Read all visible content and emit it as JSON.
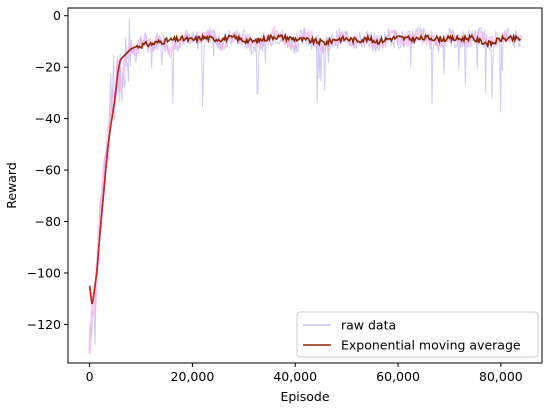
{
  "chart_data": {
    "type": "line",
    "title": "",
    "xlabel": "Episode",
    "ylabel": "Reward",
    "xlim": [
      -4200,
      88000
    ],
    "ylim": [
      -135,
      3
    ],
    "x_ticks": [
      0,
      20000,
      40000,
      60000,
      80000
    ],
    "x_tick_labels": [
      "0",
      "20,000",
      "40,000",
      "60,000",
      "80,000"
    ],
    "y_ticks": [
      0,
      -20,
      -40,
      -60,
      -80,
      -100,
      -120
    ],
    "y_tick_labels": [
      "0",
      "−20",
      "−40",
      "−60",
      "−80",
      "−100",
      "−120"
    ],
    "grid": false,
    "legend_position": "lower-right",
    "series": [
      {
        "name": "raw data",
        "color": "#c9c6f5",
        "style": "noisy",
        "x": [
          0,
          500,
          1000,
          1500,
          2000,
          2500,
          3000,
          3500,
          4000,
          4500,
          5000,
          5500,
          6000,
          7000,
          8000,
          9000,
          10000,
          12000,
          14000,
          16000,
          18000,
          20000,
          22000,
          24000,
          26000,
          28000,
          30000,
          32000,
          34000,
          36000,
          38000,
          40000,
          42000,
          44000,
          46000,
          48000,
          50000,
          52000,
          54000,
          56000,
          58000,
          60000,
          62000,
          64000,
          66000,
          68000,
          70000,
          72000,
          74000,
          76000,
          78000,
          80000,
          82000,
          84000
        ],
        "values": [
          -130,
          -108,
          -120,
          -95,
          -80,
          -66,
          -57,
          -48,
          -40,
          -25,
          -34,
          -18,
          -30,
          -16,
          -12,
          -15,
          -10,
          -11,
          -9,
          -13,
          -8,
          -10,
          -9,
          -7,
          -11,
          -8,
          -9,
          -12,
          -10,
          -7,
          -9,
          -11,
          -8,
          -10,
          -12,
          -9,
          -8,
          -10,
          -9,
          -11,
          -8,
          -9,
          -10,
          -7,
          -9,
          -11,
          -8,
          -10,
          -9,
          -8,
          -10,
          -9,
          -8,
          -9
        ]
      },
      {
        "name": "Exponential moving average",
        "color": "#8b2500",
        "x": [
          0,
          500,
          1000,
          1500,
          2000,
          2500,
          3000,
          3500,
          4000,
          4500,
          5000,
          5500,
          6000,
          7000,
          8000,
          9000,
          10000,
          12000,
          14000,
          16000,
          18000,
          20000,
          22000,
          24000,
          26000,
          28000,
          30000,
          32000,
          34000,
          36000,
          38000,
          40000,
          42000,
          44000,
          46000,
          48000,
          50000,
          52000,
          54000,
          56000,
          58000,
          60000,
          62000,
          64000,
          66000,
          68000,
          70000,
          72000,
          74000,
          76000,
          78000,
          80000,
          82000,
          84000
        ],
        "values": [
          -105,
          -113,
          -106,
          -98,
          -85,
          -74,
          -63,
          -52,
          -44,
          -38,
          -31,
          -22,
          -17,
          -15,
          -13,
          -12,
          -11.5,
          -11,
          -10,
          -9.5,
          -9,
          -9.5,
          -8.5,
          -9,
          -9,
          -8.5,
          -9.5,
          -10,
          -9,
          -8,
          -8.5,
          -9,
          -9.5,
          -10,
          -10.5,
          -9,
          -9,
          -9.5,
          -9,
          -10,
          -9,
          -8.5,
          -9,
          -9,
          -8.5,
          -9,
          -9,
          -9,
          -8.5,
          -10,
          -11,
          -9,
          -9,
          -9
        ]
      }
    ]
  }
}
